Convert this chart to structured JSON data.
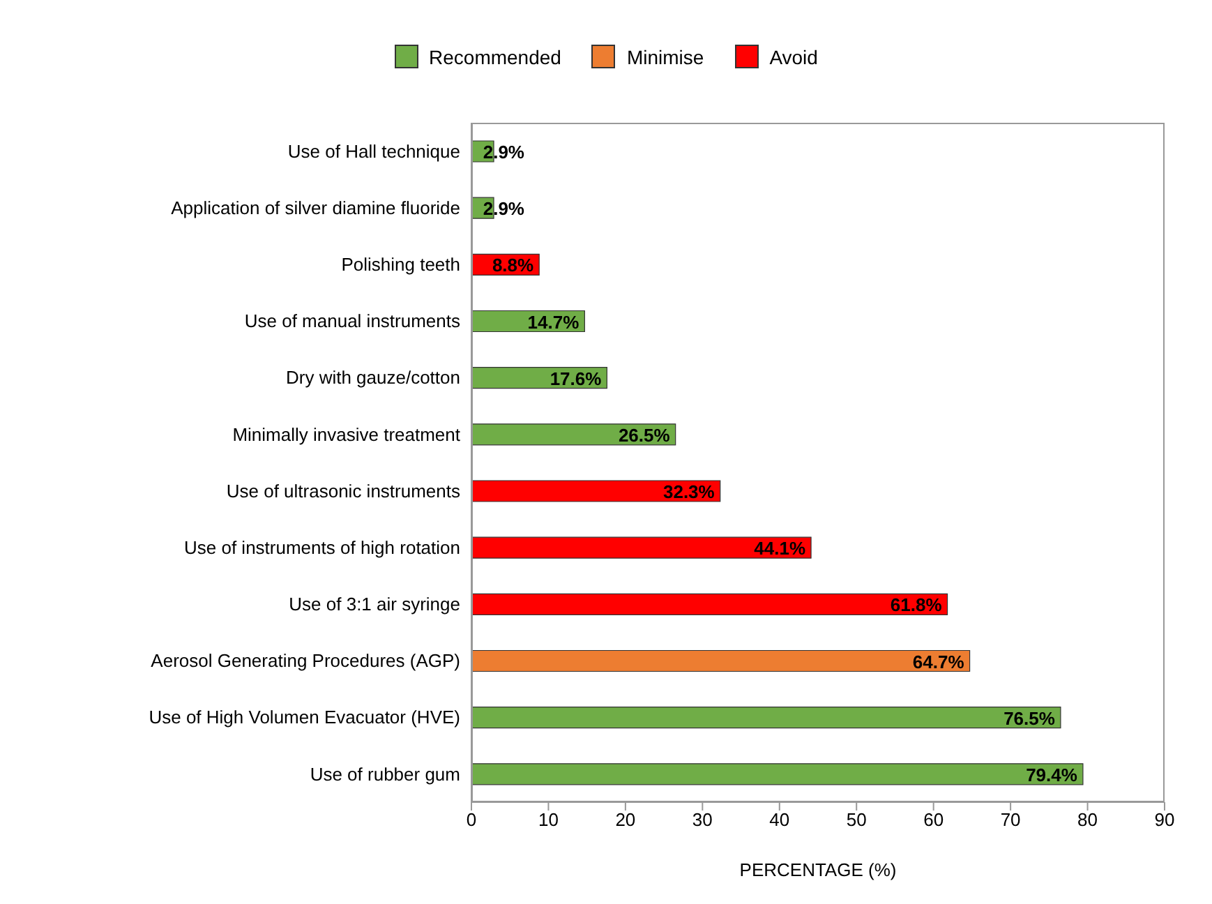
{
  "chart_data": {
    "type": "bar",
    "orientation": "horizontal",
    "stacked": true,
    "xlabel": "PERCENTAGE (%)",
    "categories": [
      "Use of Hall technique",
      "Application of silver diamine fluoride",
      "Polishing teeth",
      "Use of manual instruments",
      "Dry with gauze/cotton",
      "Minimally invasive treatment",
      "Use of ultrasonic instruments",
      "Use of instruments of high rotation",
      "Use of 3:1 air syringe",
      "Aerosol Generating Procedures (AGP)",
      "Use of High Volumen Evacuator (HVE)",
      "Use of rubber gum"
    ],
    "series": [
      {
        "name": "Recommended",
        "color": "#70ad47",
        "values": [
          2.9,
          2.9,
          null,
          14.7,
          17.6,
          26.5,
          null,
          null,
          null,
          null,
          76.5,
          79.4
        ],
        "value_labels": [
          "2.9%",
          "2.9%",
          null,
          "14.7%",
          "17.6%",
          "26.5%",
          null,
          null,
          null,
          null,
          "76.5%",
          "79.4%"
        ]
      },
      {
        "name": "Minimise",
        "color": "#ed7d31",
        "values": [
          null,
          null,
          null,
          null,
          null,
          null,
          null,
          null,
          null,
          64.7,
          null,
          null
        ],
        "value_labels": [
          null,
          null,
          null,
          null,
          null,
          null,
          null,
          null,
          null,
          "64.7%",
          null,
          null
        ]
      },
      {
        "name": "Avoid",
        "color": "#ff0000",
        "values": [
          null,
          null,
          8.8,
          null,
          null,
          null,
          32.3,
          44.1,
          61.8,
          null,
          null,
          null
        ],
        "value_labels": [
          null,
          null,
          "8.8%",
          null,
          null,
          null,
          "32.3%",
          "44.1%",
          "61.8%",
          null,
          null,
          null
        ]
      }
    ],
    "xlim": [
      0,
      90
    ],
    "xticks": [
      0,
      10,
      20,
      30,
      40,
      50,
      60,
      70,
      80,
      90
    ],
    "legend": "top"
  }
}
